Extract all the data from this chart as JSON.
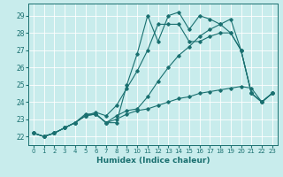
{
  "title": "",
  "xlabel": "Humidex (Indice chaleur)",
  "ylabel": "",
  "xlim": [
    -0.5,
    23.5
  ],
  "ylim": [
    21.5,
    29.7
  ],
  "yticks": [
    22,
    23,
    24,
    25,
    26,
    27,
    28,
    29
  ],
  "xticks": [
    0,
    1,
    2,
    3,
    4,
    5,
    6,
    7,
    8,
    9,
    10,
    11,
    12,
    13,
    14,
    15,
    16,
    17,
    18,
    19,
    20,
    21,
    22,
    23
  ],
  "xtick_labels": [
    "0",
    "1",
    "2",
    "3",
    "4",
    "5",
    "6",
    "7",
    "8",
    "9",
    "10",
    "11",
    "12",
    "13",
    "14",
    "15",
    "16",
    "17",
    "18",
    "19",
    "20",
    "21",
    "22",
    "23"
  ],
  "background_color": "#c8ecec",
  "grid_color": "#ffffff",
  "line_color": "#1a7070",
  "series": [
    [
      22.2,
      22.0,
      22.2,
      22.5,
      22.8,
      23.2,
      23.3,
      22.8,
      22.8,
      25.0,
      26.8,
      29.0,
      27.5,
      29.0,
      29.2,
      28.2,
      29.0,
      28.8,
      28.5,
      28.0,
      27.0,
      24.5,
      24.0,
      24.5
    ],
    [
      22.2,
      22.0,
      22.2,
      22.5,
      22.8,
      23.2,
      23.4,
      23.2,
      23.8,
      24.8,
      25.8,
      27.0,
      28.5,
      28.5,
      28.5,
      27.5,
      27.5,
      27.8,
      28.0,
      28.0,
      27.0,
      24.5,
      24.0,
      24.5
    ],
    [
      22.2,
      22.0,
      22.2,
      22.5,
      22.8,
      23.3,
      23.3,
      22.8,
      23.0,
      23.3,
      23.5,
      23.6,
      23.8,
      24.0,
      24.2,
      24.3,
      24.5,
      24.6,
      24.7,
      24.8,
      24.9,
      24.8,
      24.0,
      24.5
    ],
    [
      22.2,
      22.0,
      22.2,
      22.5,
      22.8,
      23.2,
      23.3,
      22.8,
      23.2,
      23.5,
      23.6,
      24.3,
      25.2,
      26.0,
      26.7,
      27.2,
      27.8,
      28.2,
      28.5,
      28.8,
      27.0,
      24.5,
      24.0,
      24.5
    ]
  ]
}
